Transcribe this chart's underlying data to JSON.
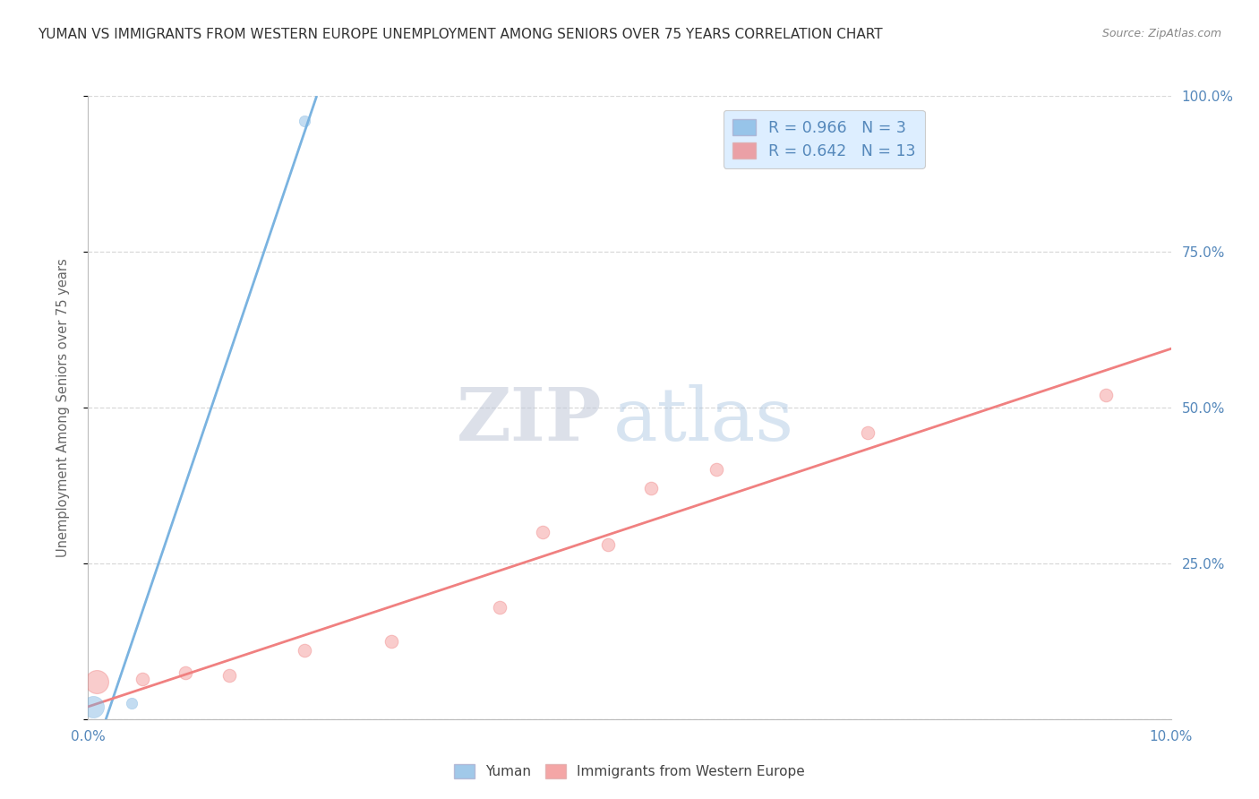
{
  "title": "YUMAN VS IMMIGRANTS FROM WESTERN EUROPE UNEMPLOYMENT AMONG SENIORS OVER 75 YEARS CORRELATION CHART",
  "source": "Source: ZipAtlas.com",
  "xlabel": "",
  "ylabel": "Unemployment Among Seniors over 75 years",
  "xlim": [
    0.0,
    10.0
  ],
  "ylim": [
    0.0,
    100.0
  ],
  "yuman_points": [
    [
      0.05,
      2.0
    ],
    [
      0.4,
      2.5
    ],
    [
      2.0,
      96.0
    ]
  ],
  "yuman_color": "#7ab3e0",
  "yuman_R": 0.966,
  "yuman_N": 3,
  "immig_points": [
    [
      0.08,
      6.0
    ],
    [
      0.5,
      6.5
    ],
    [
      0.9,
      7.5
    ],
    [
      1.3,
      7.0
    ],
    [
      2.0,
      11.0
    ],
    [
      2.8,
      12.5
    ],
    [
      3.8,
      18.0
    ],
    [
      4.2,
      30.0
    ],
    [
      4.8,
      28.0
    ],
    [
      5.2,
      37.0
    ],
    [
      5.8,
      40.0
    ],
    [
      7.2,
      46.0
    ],
    [
      9.4,
      52.0
    ]
  ],
  "immig_color": "#f08080",
  "immig_R": 0.642,
  "immig_N": 13,
  "watermark_zip": "ZIP",
  "watermark_atlas": "atlas",
  "background_color": "#ffffff",
  "grid_color": "#d8d8d8",
  "title_color": "#333333",
  "axis_label_color": "#666666",
  "tick_color": "#5588bb",
  "legend_box_color": "#ddeeff"
}
